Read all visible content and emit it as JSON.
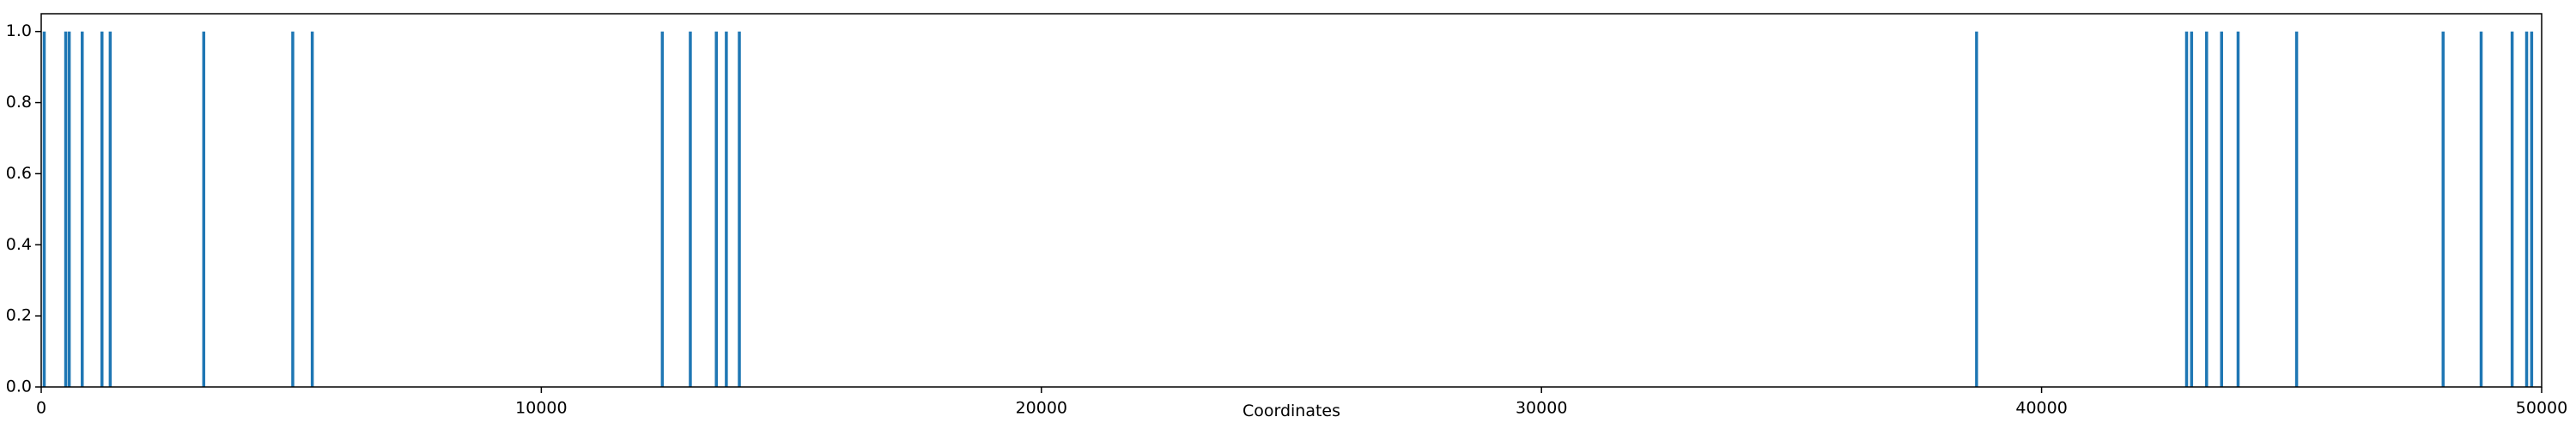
{
  "chart_data": {
    "type": "vlines",
    "xlabel": "Coordinates",
    "x": [
      60,
      490,
      560,
      820,
      1215,
      1380,
      3250,
      5030,
      5420,
      12420,
      12980,
      13500,
      13700,
      13960,
      38700,
      42900,
      43000,
      43300,
      43600,
      43930,
      45100,
      48030,
      48790,
      49410,
      49700,
      49800
    ],
    "values": [
      1,
      1,
      1,
      1,
      1,
      1,
      1,
      1,
      1,
      1,
      1,
      1,
      1,
      1,
      1,
      1,
      1,
      1,
      1,
      1,
      1,
      1,
      1,
      1,
      1,
      1
    ],
    "color": "#1f77b4",
    "xlim": [
      0,
      50000
    ],
    "xticks": [
      0,
      10000,
      20000,
      30000,
      40000,
      50000
    ],
    "ylim": [
      0,
      1.05
    ],
    "yticks": [
      {
        "value": 0,
        "label": "0.0"
      },
      {
        "value": 0.2,
        "label": "0.2"
      },
      {
        "value": 0.4,
        "label": "0.4"
      },
      {
        "value": 0.6,
        "label": "0.6"
      },
      {
        "value": 0.8,
        "label": "0.8"
      },
      {
        "value": 1,
        "label": "1.0"
      }
    ]
  }
}
